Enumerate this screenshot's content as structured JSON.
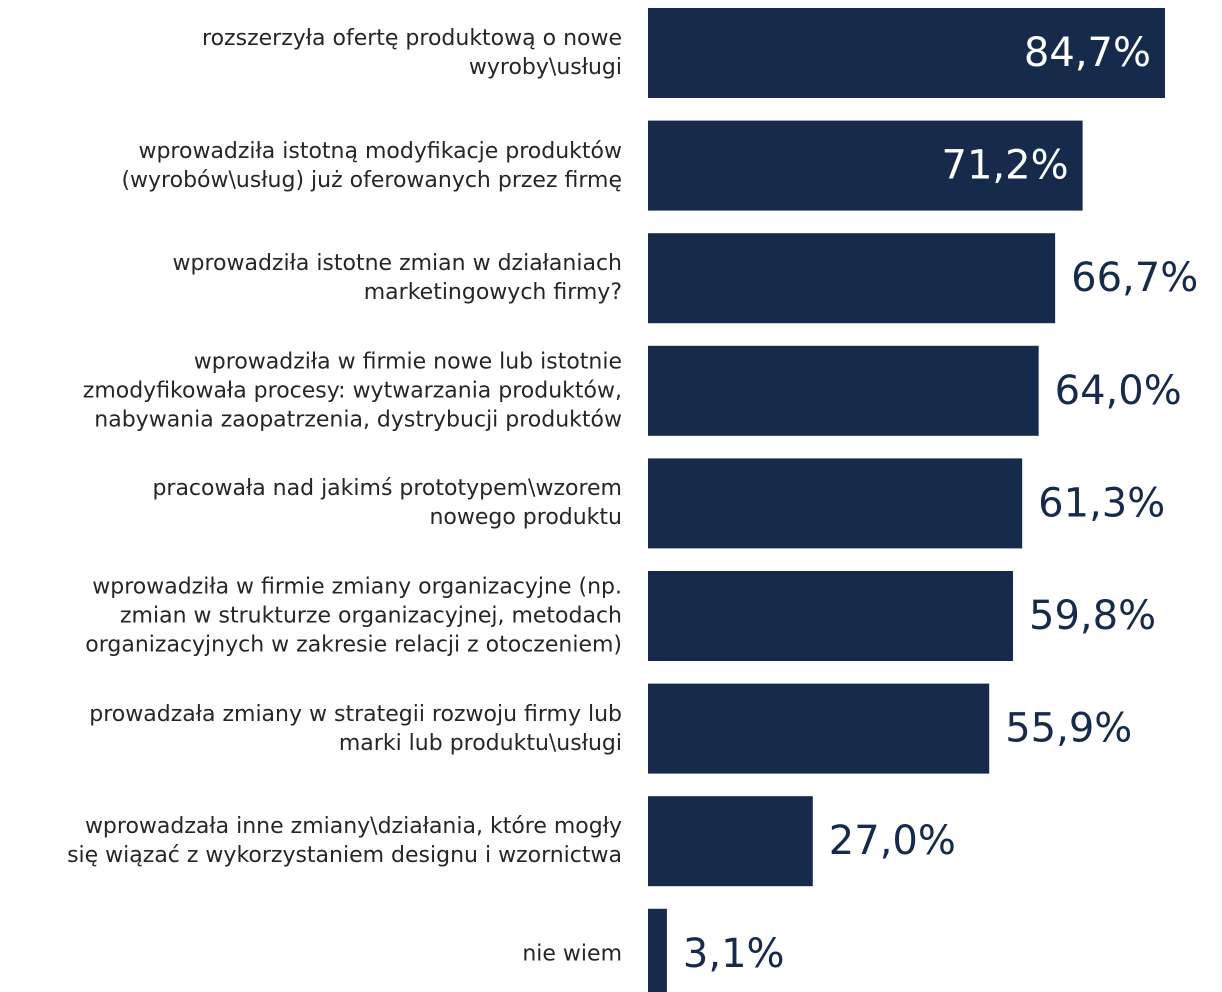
{
  "chart_data": {
    "type": "bar",
    "orientation": "horizontal",
    "color": "#162a4b",
    "categories": [
      "rozszerzyła ofertę produktową o nowe\nwyroby\\usługi",
      "wprowadziła istotną modyfikacje produktów\n(wyrobów\\usług) już oferowanych przez firmę",
      "wprowadziła istotne zmian w działaniach\nmarketingowych firmy?",
      "wprowadziła w firmie nowe lub istotnie\nzmodyfikowała procesy: wytwarzania produktów,\nnabywania zaopatrzenia, dystrybucji produktów",
      "pracowała nad jakimś prototypem\\wzorem\nnowego produktu",
      "wprowadziła w firmie zmiany organizacyjne (np.\nzmian w strukturze organizacyjnej, metodach\norganizacyjnych w zakresie relacji z otoczeniem)",
      "prowadzała zmiany w strategii rozwoju firmy lub\nmarki lub produktu\\usługi",
      "wprowadzała inne zmiany\\działania, które mogły\nsię wiązać z wykorzystaniem designu i wzornictwa",
      "nie wiem"
    ],
    "values": [
      84.7,
      71.2,
      66.7,
      64.0,
      61.3,
      59.8,
      55.9,
      27.0,
      3.1
    ],
    "value_labels": [
      "84,7%",
      "71,2%",
      "66,7%",
      "64,0%",
      "61,3%",
      "59,8%",
      "55,9%",
      "27,0%",
      "3,1%"
    ]
  }
}
